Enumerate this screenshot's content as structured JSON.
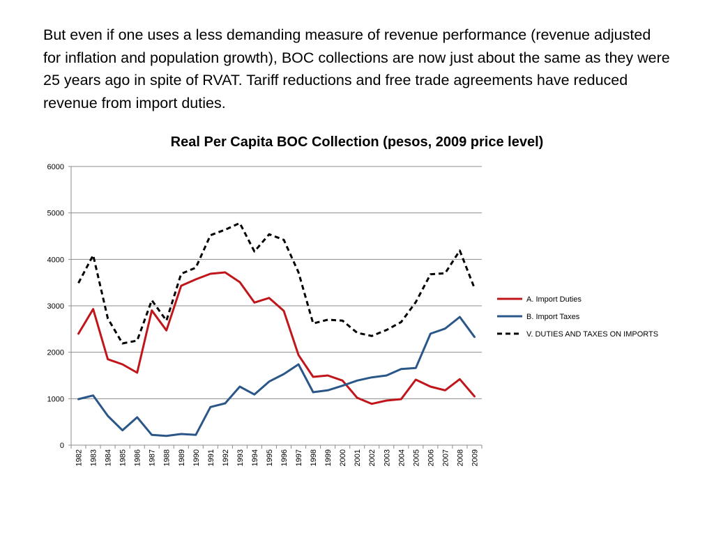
{
  "intro_text": "But even if one uses a less demanding measure of revenue performance (revenue adjusted for inflation and population growth), BOC collections are now just about the same as they were 25 years ago in spite of RVAT. Tariff reductions and free trade agreements have reduced revenue from import duties.",
  "chart_data": {
    "type": "line",
    "title": "Real Per Capita BOC Collection (pesos, 2009 price level)",
    "xlabel": "",
    "ylabel": "",
    "ylim": [
      0,
      6000
    ],
    "yticks": [
      0,
      1000,
      2000,
      3000,
      4000,
      5000,
      6000
    ],
    "grid": true,
    "legend_position": "right",
    "categories": [
      "1982",
      "1983",
      "1984",
      "1985",
      "1986",
      "1987",
      "1988",
      "1989",
      "1990",
      "1991",
      "1992",
      "1993",
      "1994",
      "1995",
      "1996",
      "1997",
      "1998",
      "1999",
      "2000",
      "2001",
      "2002",
      "2003",
      "2004",
      "2005",
      "2006",
      "2007",
      "2008",
      "2009"
    ],
    "series": [
      {
        "name": "A. Import Duties",
        "color": "#c0161b",
        "style": "solid",
        "values": [
          2400,
          2930,
          1850,
          1740,
          1560,
          2900,
          2470,
          3430,
          3570,
          3690,
          3720,
          3510,
          3070,
          3170,
          2890,
          1940,
          1470,
          1500,
          1390,
          1020,
          890,
          960,
          990,
          1410,
          1260,
          1180,
          1420,
          1050
        ]
      },
      {
        "name": "B. Import Taxes",
        "color": "#2a5688",
        "style": "solid",
        "values": [
          990,
          1070,
          630,
          320,
          600,
          220,
          200,
          240,
          220,
          820,
          900,
          1260,
          1090,
          1370,
          1530,
          1740,
          1140,
          1180,
          1280,
          1390,
          1460,
          1500,
          1640,
          1660,
          2400,
          2510,
          2760,
          2330
        ]
      },
      {
        "name": "V. DUTIES AND TAXES ON IMPORTS",
        "color": "#000000",
        "style": "dashed",
        "values": [
          3490,
          4090,
          2730,
          2190,
          2250,
          3120,
          2680,
          3690,
          3820,
          4520,
          4640,
          4780,
          4170,
          4540,
          4420,
          3720,
          2620,
          2700,
          2680,
          2420,
          2350,
          2480,
          2650,
          3080,
          3680,
          3700,
          4190,
          3380
        ]
      }
    ]
  }
}
